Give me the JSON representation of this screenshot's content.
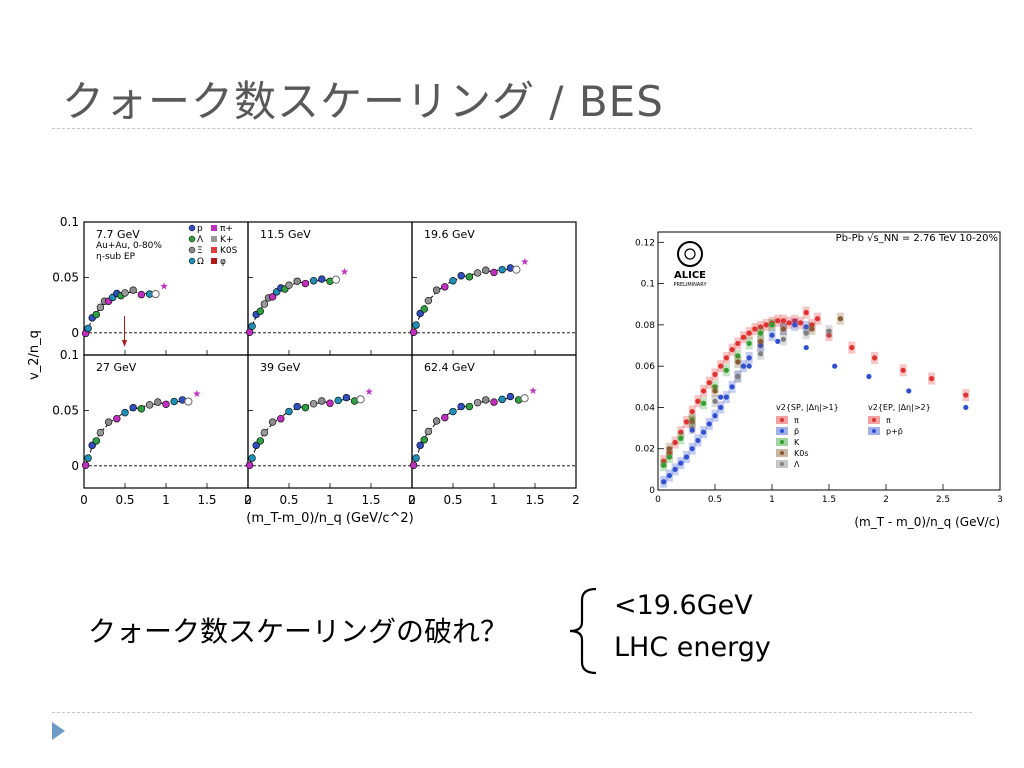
{
  "slide": {
    "title": "クォーク数スケーリング / BES",
    "caption": "クォーク数スケーリングの破れ？",
    "notes": [
      "<19.6GeV",
      "LHC energy"
    ]
  },
  "chart_data": [
    {
      "type": "scatter",
      "panel_titles": [
        "7.7 GeV",
        "11.5 GeV",
        "19.6 GeV",
        "27 GeV",
        "39 GeV",
        "62.4 GeV"
      ],
      "xlabel": "(m_T-m_0)/n_q (GeV/c^2)",
      "ylabel": "v_2/n_q",
      "xlim": [
        0,
        2
      ],
      "ylim": [
        -0.02,
        0.1
      ],
      "x_ticks": [
        "0",
        "0.5",
        "1",
        "1.5",
        "2"
      ],
      "y_ticks": [
        "0",
        "0.05",
        "0.1"
      ],
      "grid": false,
      "annotations": [
        "Au+Au, 0-80%",
        "η-sub EP"
      ],
      "legend": [
        "p",
        "Λ",
        "Ξ",
        "Ω",
        "π+",
        "K+",
        "K0S",
        "φ"
      ],
      "colors": {
        "p": "#2f4fc0",
        "lambda": "#2ea043",
        "xi": "#8a8a8a",
        "omega": "#1f8fb8",
        "pion": "#c02fbf",
        "kaon": "#999999",
        "k0s": "#e03a3a",
        "phi": "#b01818"
      },
      "series": [
        {
          "x": [
            0.02,
            0.05,
            0.1,
            0.15,
            0.2,
            0.25,
            0.3,
            0.35,
            0.4,
            0.45,
            0.5,
            0.6,
            0.7,
            0.8
          ],
          "values": [
            0.001,
            0.004,
            0.012,
            0.018,
            0.023,
            0.027,
            0.03,
            0.032,
            0.034,
            0.035,
            0.036,
            0.037,
            0.036,
            0.035
          ]
        },
        {
          "x": [
            0.02,
            0.05,
            0.1,
            0.15,
            0.2,
            0.25,
            0.3,
            0.35,
            0.4,
            0.45,
            0.5,
            0.6,
            0.7,
            0.8,
            0.9,
            1.0
          ],
          "values": [
            0.002,
            0.006,
            0.015,
            0.021,
            0.026,
            0.03,
            0.034,
            0.037,
            0.039,
            0.041,
            0.043,
            0.045,
            0.046,
            0.047,
            0.047,
            0.048
          ]
        },
        {
          "x": [
            0.02,
            0.05,
            0.1,
            0.15,
            0.2,
            0.3,
            0.4,
            0.5,
            0.6,
            0.7,
            0.8,
            0.9,
            1.0,
            1.1,
            1.2
          ],
          "values": [
            0.002,
            0.007,
            0.016,
            0.023,
            0.029,
            0.037,
            0.043,
            0.047,
            0.05,
            0.052,
            0.054,
            0.055,
            0.056,
            0.057,
            0.057
          ]
        },
        {
          "x": [
            0.02,
            0.05,
            0.1,
            0.15,
            0.2,
            0.3,
            0.4,
            0.5,
            0.6,
            0.7,
            0.8,
            0.9,
            1.0,
            1.1,
            1.2
          ],
          "values": [
            0.002,
            0.007,
            0.017,
            0.024,
            0.03,
            0.038,
            0.044,
            0.048,
            0.051,
            0.053,
            0.055,
            0.056,
            0.057,
            0.058,
            0.058
          ]
        },
        {
          "x": [
            0.02,
            0.05,
            0.1,
            0.15,
            0.2,
            0.3,
            0.4,
            0.5,
            0.6,
            0.7,
            0.8,
            0.9,
            1.0,
            1.1,
            1.2,
            1.3
          ],
          "values": [
            0.002,
            0.007,
            0.017,
            0.024,
            0.03,
            0.038,
            0.044,
            0.049,
            0.052,
            0.054,
            0.056,
            0.057,
            0.058,
            0.059,
            0.06,
            0.06
          ]
        },
        {
          "x": [
            0.02,
            0.05,
            0.1,
            0.15,
            0.2,
            0.3,
            0.4,
            0.5,
            0.6,
            0.7,
            0.8,
            0.9,
            1.0,
            1.1,
            1.2,
            1.3
          ],
          "values": [
            0.002,
            0.007,
            0.017,
            0.025,
            0.031,
            0.039,
            0.045,
            0.049,
            0.052,
            0.055,
            0.057,
            0.058,
            0.059,
            0.06,
            0.061,
            0.061
          ]
        }
      ]
    },
    {
      "type": "scatter",
      "title": "Pb-Pb √s_NN = 2.76 TeV 10-20%",
      "logo": "ALICE",
      "logo_sub": "PRELIMINARY",
      "xlabel": "(m_T - m_0)/n_q (GeV/c)",
      "xlim": [
        0,
        3
      ],
      "ylim": [
        0,
        0.125
      ],
      "x_ticks": [
        "0",
        "0.5",
        "1",
        "1.5",
        "2",
        "2.5",
        "3"
      ],
      "y_ticks": [
        "0",
        "0.02",
        "0.04",
        "0.06",
        "0.08",
        "0.1",
        "0.12"
      ],
      "grid": false,
      "legend_headers": [
        "v2{SP, |Δη|>1}",
        "v2{EP, |Δη|>2}"
      ],
      "legend_left": [
        "π",
        "p̄",
        "K",
        "K0s",
        "Λ"
      ],
      "legend_right": [
        "π",
        "p+p̄"
      ],
      "series": [
        {
          "name": "π",
          "color": "#e03030",
          "x": [
            0.05,
            0.1,
            0.15,
            0.2,
            0.25,
            0.3,
            0.35,
            0.4,
            0.45,
            0.5,
            0.55,
            0.6,
            0.65,
            0.7,
            0.75,
            0.8,
            0.85,
            0.9,
            0.95,
            1.0,
            1.05,
            1.1,
            1.15,
            1.2,
            1.25,
            1.3,
            1.35,
            1.4,
            1.5,
            1.7,
            1.9,
            2.15,
            2.4,
            2.7
          ],
          "values": [
            0.014,
            0.018,
            0.023,
            0.028,
            0.033,
            0.038,
            0.043,
            0.048,
            0.052,
            0.056,
            0.06,
            0.064,
            0.068,
            0.071,
            0.074,
            0.076,
            0.078,
            0.079,
            0.08,
            0.081,
            0.082,
            0.082,
            0.081,
            0.082,
            0.081,
            0.086,
            0.08,
            0.083,
            0.075,
            0.069,
            0.064,
            0.058,
            0.054,
            0.046
          ]
        },
        {
          "name": "p̄",
          "color": "#3050d0",
          "x": [
            0.05,
            0.1,
            0.15,
            0.2,
            0.25,
            0.3,
            0.35,
            0.4,
            0.45,
            0.5,
            0.55,
            0.6,
            0.65,
            0.7,
            0.75,
            0.8,
            0.9,
            1.0,
            1.1,
            1.2,
            1.3
          ],
          "values": [
            0.004,
            0.007,
            0.01,
            0.013,
            0.016,
            0.02,
            0.024,
            0.028,
            0.032,
            0.036,
            0.04,
            0.045,
            0.05,
            0.055,
            0.06,
            0.064,
            0.07,
            0.075,
            0.078,
            0.08,
            0.079
          ]
        },
        {
          "name": "K",
          "color": "#30a030",
          "x": [
            0.05,
            0.1,
            0.2,
            0.3,
            0.4,
            0.5,
            0.6,
            0.7,
            0.8,
            0.9,
            1.0
          ],
          "values": [
            0.012,
            0.016,
            0.025,
            0.034,
            0.042,
            0.05,
            0.058,
            0.065,
            0.071,
            0.076,
            0.08
          ]
        },
        {
          "name": "K0s",
          "color": "#8a5a30",
          "x": [
            0.1,
            0.3,
            0.5,
            0.7,
            0.9,
            1.1,
            1.35,
            1.6
          ],
          "values": [
            0.02,
            0.033,
            0.048,
            0.062,
            0.072,
            0.078,
            0.078,
            0.083
          ]
        },
        {
          "name": "Λ",
          "color": "#808080",
          "x": [
            0.3,
            0.5,
            0.7,
            0.9,
            1.1,
            1.3,
            1.5
          ],
          "values": [
            0.03,
            0.043,
            0.055,
            0.066,
            0.073,
            0.076,
            0.077
          ]
        },
        {
          "name": "p+p̄",
          "color": "#3050d0",
          "x": [
            0.3,
            0.55,
            0.8,
            1.05,
            1.3,
            1.55,
            1.85,
            2.2,
            2.7
          ],
          "values": [
            0.029,
            0.045,
            0.06,
            0.072,
            0.069,
            0.06,
            0.055,
            0.048,
            0.04
          ]
        }
      ]
    }
  ]
}
